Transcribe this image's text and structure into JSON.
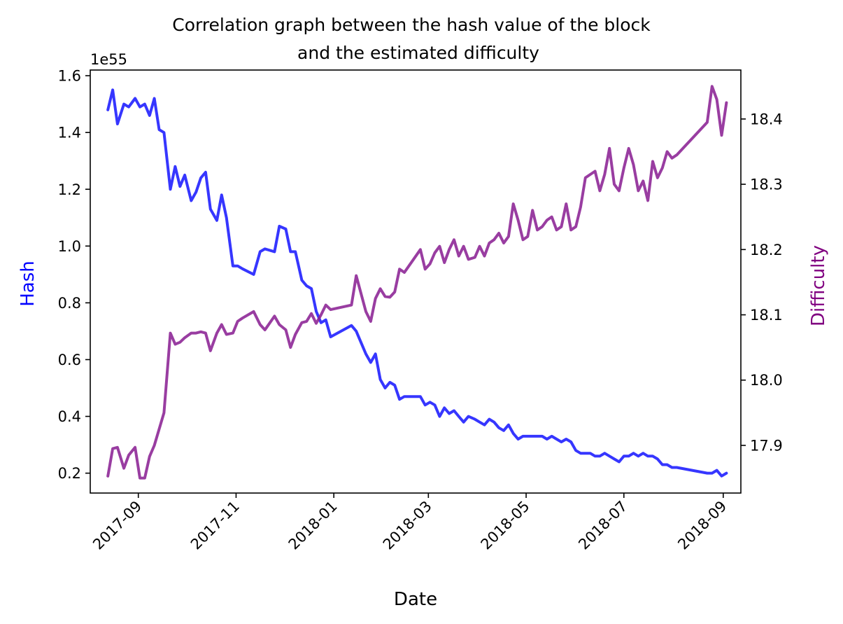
{
  "chart_data": {
    "type": "line",
    "title_line1": "Correlation graph between the hash value of the block",
    "title_line2": "and the estimated difficulty",
    "xlabel": "Date",
    "y_left_label": "Hash",
    "y_right_label": "Difficulty",
    "y_left_multiplier": "1e55",
    "y_left_lim": [
      0.13,
      1.62
    ],
    "y_right_lim": [
      17.827,
      18.475
    ],
    "x_lim": [
      "2017-08-02",
      "2018-09-12"
    ],
    "y_left_ticks": [
      "0.2",
      "0.4",
      "0.6",
      "0.8",
      "1.0",
      "1.2",
      "1.4",
      "1.6"
    ],
    "y_right_ticks": [
      "17.9",
      "18.0",
      "18.1",
      "18.2",
      "18.3",
      "18.4"
    ],
    "x_ticks": [
      "2017-09",
      "2017-11",
      "2018-01",
      "2018-03",
      "2018-05",
      "2018-07",
      "2018-09"
    ],
    "colors": {
      "hash": "#1a1aff",
      "difficulty": "#8b2294",
      "left_label": "#0000ff",
      "right_label": "#800080"
    },
    "series": [
      {
        "name": "Hash",
        "axis": "left",
        "x": [
          "2017-08-13",
          "2017-08-16",
          "2017-08-19",
          "2017-08-23",
          "2017-08-26",
          "2017-08-30",
          "2017-09-02",
          "2017-09-05",
          "2017-09-08",
          "2017-09-11",
          "2017-09-14",
          "2017-09-17",
          "2017-09-21",
          "2017-09-24",
          "2017-09-27",
          "2017-09-30",
          "2017-10-04",
          "2017-10-07",
          "2017-10-10",
          "2017-10-13",
          "2017-10-16",
          "2017-10-20",
          "2017-10-23",
          "2017-10-26",
          "2017-10-30",
          "2017-11-02",
          "2017-11-05",
          "2017-11-12",
          "2017-11-16",
          "2017-11-19",
          "2017-11-25",
          "2017-11-28",
          "2017-12-02",
          "2017-12-05",
          "2017-12-08",
          "2017-12-12",
          "2017-12-15",
          "2017-12-18",
          "2017-12-21",
          "2017-12-24",
          "2017-12-27",
          "2017-12-30",
          "2018-01-12",
          "2018-01-15",
          "2018-01-21",
          "2018-01-24",
          "2018-01-27",
          "2018-01-30",
          "2018-02-02",
          "2018-02-05",
          "2018-02-08",
          "2018-02-11",
          "2018-02-14",
          "2018-02-24",
          "2018-02-27",
          "2018-03-02",
          "2018-03-05",
          "2018-03-08",
          "2018-03-11",
          "2018-03-14",
          "2018-03-17",
          "2018-03-20",
          "2018-03-23",
          "2018-03-26",
          "2018-03-30",
          "2018-04-02",
          "2018-04-05",
          "2018-04-08",
          "2018-04-11",
          "2018-04-14",
          "2018-04-17",
          "2018-04-20",
          "2018-04-23",
          "2018-04-26",
          "2018-04-29",
          "2018-05-02",
          "2018-05-05",
          "2018-05-08",
          "2018-05-11",
          "2018-05-14",
          "2018-05-17",
          "2018-05-20",
          "2018-05-23",
          "2018-05-26",
          "2018-05-29",
          "2018-06-01",
          "2018-06-04",
          "2018-06-07",
          "2018-06-10",
          "2018-06-13",
          "2018-06-16",
          "2018-06-19",
          "2018-06-22",
          "2018-06-25",
          "2018-06-28",
          "2018-07-01",
          "2018-07-04",
          "2018-07-07",
          "2018-07-10",
          "2018-07-13",
          "2018-07-16",
          "2018-07-19",
          "2018-07-22",
          "2018-07-25",
          "2018-07-28",
          "2018-07-31",
          "2018-08-03",
          "2018-08-22",
          "2018-08-25",
          "2018-08-28",
          "2018-08-31",
          "2018-09-03"
        ],
        "values": [
          1.48,
          1.55,
          1.43,
          1.5,
          1.49,
          1.52,
          1.49,
          1.5,
          1.46,
          1.52,
          1.41,
          1.4,
          1.2,
          1.28,
          1.21,
          1.25,
          1.16,
          1.19,
          1.24,
          1.26,
          1.13,
          1.09,
          1.18,
          1.1,
          0.93,
          0.93,
          0.92,
          0.9,
          0.98,
          0.99,
          0.98,
          1.07,
          1.06,
          0.98,
          0.98,
          0.88,
          0.86,
          0.85,
          0.77,
          0.73,
          0.74,
          0.68,
          0.72,
          0.7,
          0.62,
          0.59,
          0.62,
          0.53,
          0.5,
          0.52,
          0.51,
          0.46,
          0.47,
          0.47,
          0.44,
          0.45,
          0.44,
          0.4,
          0.43,
          0.41,
          0.42,
          0.4,
          0.38,
          0.4,
          0.39,
          0.38,
          0.37,
          0.39,
          0.38,
          0.36,
          0.35,
          0.37,
          0.34,
          0.32,
          0.33,
          0.33,
          0.33,
          0.33,
          0.33,
          0.32,
          0.33,
          0.32,
          0.31,
          0.32,
          0.31,
          0.28,
          0.27,
          0.27,
          0.27,
          0.26,
          0.26,
          0.27,
          0.26,
          0.25,
          0.24,
          0.26,
          0.26,
          0.27,
          0.26,
          0.27,
          0.26,
          0.26,
          0.25,
          0.23,
          0.23,
          0.22,
          0.22,
          0.2,
          0.2,
          0.21,
          0.19,
          0.2
        ]
      },
      {
        "name": "Difficulty",
        "axis": "right",
        "x": [
          "2017-08-13",
          "2017-08-16",
          "2017-08-19",
          "2017-08-23",
          "2017-08-26",
          "2017-08-30",
          "2017-09-02",
          "2017-09-05",
          "2017-09-08",
          "2017-09-11",
          "2017-09-14",
          "2017-09-17",
          "2017-09-21",
          "2017-09-24",
          "2017-09-27",
          "2017-09-30",
          "2017-10-04",
          "2017-10-07",
          "2017-10-10",
          "2017-10-13",
          "2017-10-16",
          "2017-10-20",
          "2017-10-23",
          "2017-10-26",
          "2017-10-30",
          "2017-11-02",
          "2017-11-05",
          "2017-11-12",
          "2017-11-16",
          "2017-11-19",
          "2017-11-25",
          "2017-11-28",
          "2017-12-02",
          "2017-12-05",
          "2017-12-08",
          "2017-12-12",
          "2017-12-15",
          "2017-12-18",
          "2017-12-21",
          "2017-12-24",
          "2017-12-27",
          "2017-12-30",
          "2018-01-12",
          "2018-01-15",
          "2018-01-21",
          "2018-01-24",
          "2018-01-27",
          "2018-01-30",
          "2018-02-02",
          "2018-02-05",
          "2018-02-08",
          "2018-02-11",
          "2018-02-14",
          "2018-02-24",
          "2018-02-27",
          "2018-03-02",
          "2018-03-05",
          "2018-03-08",
          "2018-03-11",
          "2018-03-14",
          "2018-03-17",
          "2018-03-20",
          "2018-03-23",
          "2018-03-26",
          "2018-03-30",
          "2018-04-02",
          "2018-04-05",
          "2018-04-08",
          "2018-04-11",
          "2018-04-14",
          "2018-04-17",
          "2018-04-20",
          "2018-04-23",
          "2018-04-26",
          "2018-04-29",
          "2018-05-02",
          "2018-05-05",
          "2018-05-08",
          "2018-05-11",
          "2018-05-14",
          "2018-05-17",
          "2018-05-20",
          "2018-05-23",
          "2018-05-26",
          "2018-05-29",
          "2018-06-01",
          "2018-06-04",
          "2018-06-07",
          "2018-06-10",
          "2018-06-13",
          "2018-06-16",
          "2018-06-19",
          "2018-06-22",
          "2018-06-25",
          "2018-06-28",
          "2018-07-01",
          "2018-07-04",
          "2018-07-07",
          "2018-07-10",
          "2018-07-13",
          "2018-07-16",
          "2018-07-19",
          "2018-07-22",
          "2018-07-25",
          "2018-07-28",
          "2018-07-31",
          "2018-08-03",
          "2018-08-22",
          "2018-08-25",
          "2018-08-28",
          "2018-08-31",
          "2018-09-03"
        ],
        "values": [
          17.853,
          17.895,
          17.897,
          17.865,
          17.885,
          17.897,
          17.85,
          17.85,
          17.883,
          17.9,
          17.925,
          17.95,
          18.072,
          18.055,
          18.058,
          18.065,
          18.072,
          18.072,
          18.074,
          18.072,
          18.045,
          18.072,
          18.085,
          18.07,
          18.072,
          18.09,
          18.095,
          18.105,
          18.085,
          18.077,
          18.098,
          18.085,
          18.077,
          18.05,
          18.07,
          18.088,
          18.09,
          18.102,
          18.087,
          18.1,
          18.115,
          18.108,
          18.115,
          18.16,
          18.105,
          18.09,
          18.125,
          18.14,
          18.128,
          18.127,
          18.135,
          18.17,
          18.165,
          18.2,
          18.17,
          18.178,
          18.195,
          18.205,
          18.18,
          18.2,
          18.215,
          18.19,
          18.205,
          18.185,
          18.188,
          18.205,
          18.19,
          18.21,
          18.215,
          18.225,
          18.21,
          18.22,
          18.27,
          18.245,
          18.215,
          18.22,
          18.26,
          18.23,
          18.235,
          18.245,
          18.25,
          18.23,
          18.235,
          18.27,
          18.23,
          18.235,
          18.265,
          18.31,
          18.315,
          18.32,
          18.29,
          18.315,
          18.355,
          18.3,
          18.29,
          18.325,
          18.355,
          18.33,
          18.29,
          18.305,
          18.275,
          18.335,
          18.31,
          18.325,
          18.35,
          18.34,
          18.345,
          18.395,
          18.45,
          18.43,
          18.375,
          18.425
        ]
      }
    ]
  }
}
